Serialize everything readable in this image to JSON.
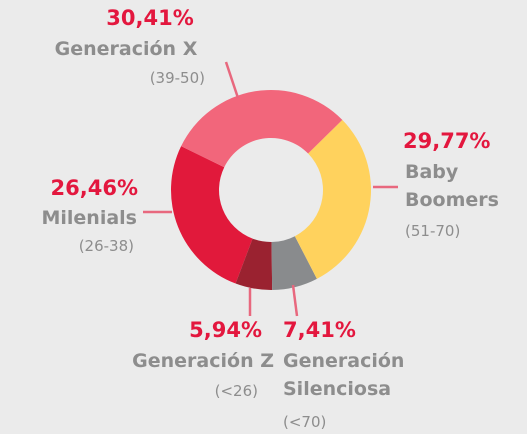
{
  "chart_data": {
    "type": "donut",
    "categories": [
      "Generación X",
      "Baby Boomers",
      "Generación Silenciosa",
      "Generación Z",
      "Milenials"
    ],
    "ranges": [
      "(39-50)",
      "(51-70)",
      "(<70)",
      "(<26)",
      "(26-38)"
    ],
    "values": [
      30.41,
      29.77,
      7.41,
      5.94,
      26.46
    ],
    "value_labels": [
      "30,41%",
      "29,77%",
      "7,41%",
      "5,94%",
      "26,46%"
    ],
    "colors": [
      "#f2667b",
      "#ffd25d",
      "#898b8d",
      "#9a2230",
      "#e1193b"
    ]
  }
}
